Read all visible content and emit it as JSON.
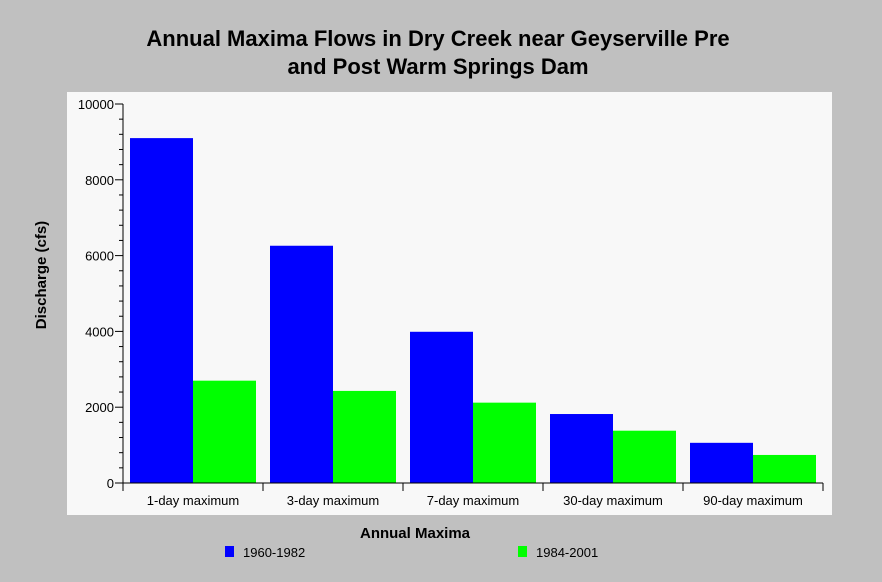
{
  "chart_data": {
    "type": "bar",
    "title_line1": "Annual Maxima Flows in Dry Creek near Geyserville Pre",
    "title_line2": "and Post Warm Springs Dam",
    "xlabel": "Annual Maxima",
    "ylabel": "Discharge (cfs)",
    "ylim": [
      0,
      10000
    ],
    "yticks": [
      "0",
      "2000",
      "4000",
      "6000",
      "8000",
      "10000"
    ],
    "categories": [
      "1-day maximum",
      "3-day maximum",
      "7-day maximum",
      "30-day maximum",
      "90-day maximum"
    ],
    "series": [
      {
        "name": "1960-1982",
        "color": "#0000ff",
        "values": [
          9100,
          6260,
          3990,
          1820,
          1060
        ]
      },
      {
        "name": "1984-2001",
        "color": "#00ff00",
        "values": [
          2700,
          2430,
          2120,
          1380,
          740
        ]
      }
    ],
    "grid": false,
    "legend_position": "bottom",
    "plot_background": "#f8f8f8",
    "page_background": "#c0c0c0"
  }
}
